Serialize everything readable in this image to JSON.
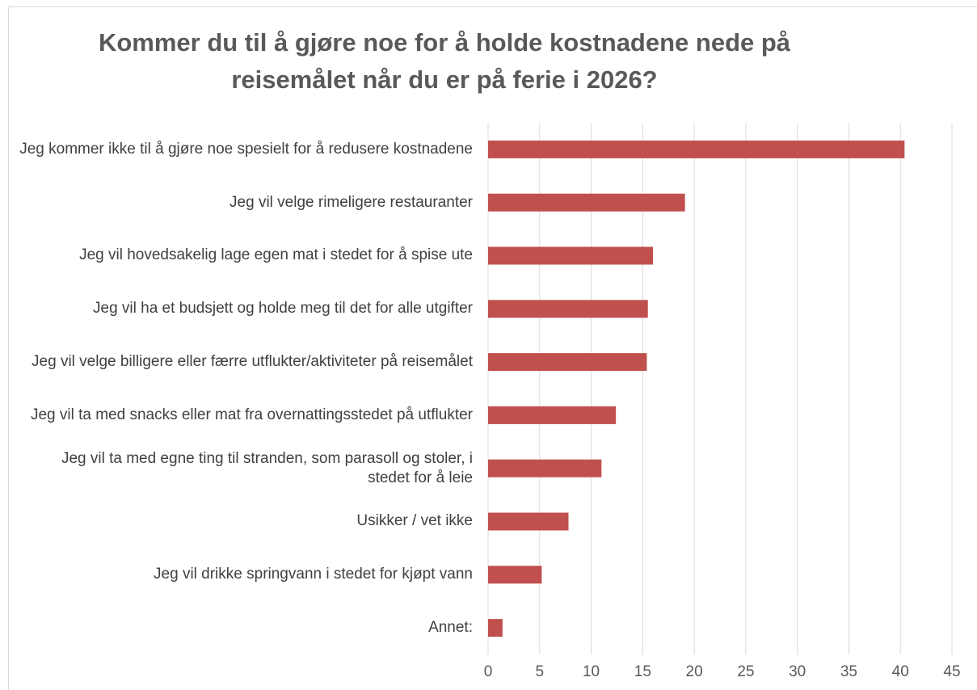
{
  "chart_data": {
    "type": "bar",
    "orientation": "horizontal",
    "title": "Kommer du til å gjøre noe for å holde kostnadene nede på reisemålet når du er på ferie i 2026?",
    "categories": [
      "Jeg kommer ikke til å gjøre noe spesielt for å redusere kostnadene",
      "Jeg vil velge rimeligere restauranter",
      "Jeg vil hovedsakelig lage egen mat i stedet for å spise ute",
      "Jeg vil ha et budsjett og holde meg til det for alle utgifter",
      "Jeg vil velge billigere eller færre utflukter/aktiviteter på reisemålet",
      "Jeg vil ta med snacks eller mat fra overnattingsstedet på utflukter",
      "Jeg vil ta med egne ting til stranden, som parasoll og stoler, i stedet for å leie",
      "Usikker / vet ikke",
      "Jeg vil drikke springvann i stedet for kjøpt vann",
      "Annet:"
    ],
    "values": [
      40.4,
      19.1,
      16.0,
      15.5,
      15.4,
      12.4,
      11.0,
      7.8,
      5.2,
      1.4
    ],
    "color": "#c0504d",
    "xlim": [
      0,
      45
    ],
    "xticks": [
      0,
      5,
      10,
      15,
      20,
      25,
      30,
      35,
      40,
      45
    ],
    "grid": true
  }
}
